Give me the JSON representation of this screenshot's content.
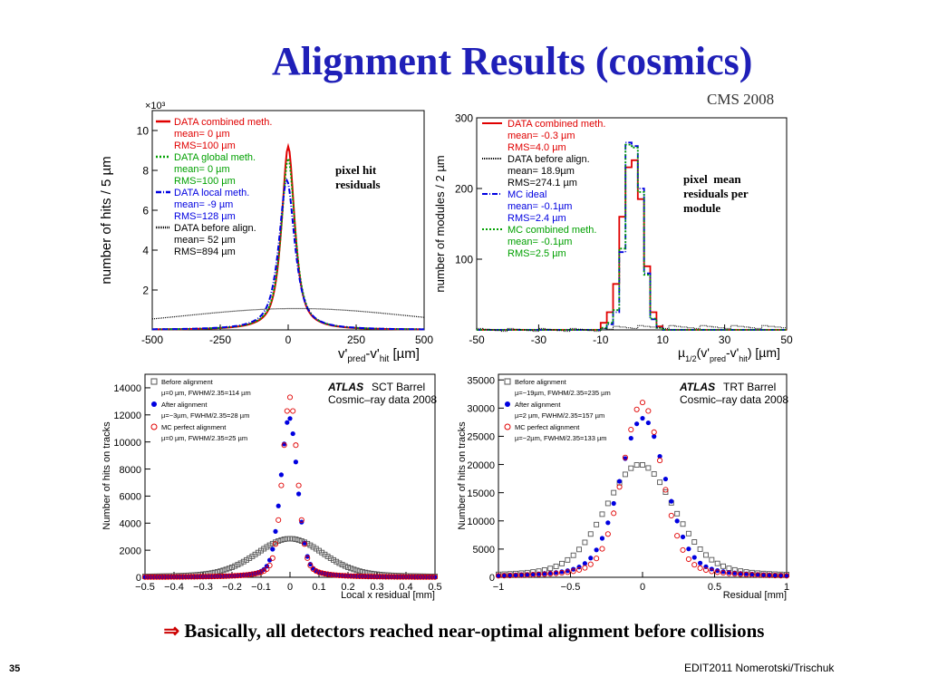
{
  "title": "Alignment Results (cosmics)",
  "cms_tag": "CMS 2008",
  "footer": {
    "arrow": "⇒",
    "text": "Basically, all detectors reached near-optimal alignment before collisions"
  },
  "page_number": "35",
  "credit": "EDIT2011 Nomerotski/Trischuk",
  "notes": {
    "pixel_hit": [
      "pixel hit",
      "residuals"
    ],
    "pixel_mean": [
      "pixel  mean",
      "residuals per",
      "module"
    ]
  },
  "colors": {
    "red": "#e00000",
    "green": "#00a000",
    "blue": "#0000e0",
    "black": "#000000",
    "title": "#1f1fb8"
  },
  "chart_data": [
    {
      "id": "cms-pixel-hit",
      "type": "line",
      "xlabel_main": "v'",
      "xlabel_sub1": "pred",
      "xlabel_mid": "-v'",
      "xlabel_sub2": "hit",
      "xlabel_unit": " [µm]",
      "ylabel": "number of hits / 5 µm",
      "yexp": "×10³",
      "xlim": [
        -500,
        500
      ],
      "ylim": [
        0,
        11
      ],
      "xticks": [
        -500,
        -250,
        0,
        250,
        500
      ],
      "yticks": [
        2,
        4,
        6,
        8,
        10
      ],
      "legend": [
        {
          "name": "DATA combined meth.",
          "color": "#e00000",
          "dash": "",
          "lines": [
            "mean= 0 µm",
            "RMS=100 µm"
          ]
        },
        {
          "name": "DATA global meth.",
          "color": "#00a000",
          "dash": "2,2",
          "lines": [
            "mean= 0 µm",
            "RMS=100 µm"
          ]
        },
        {
          "name": "DATA local meth.",
          "color": "#0000e0",
          "dash": "6,2,1,2",
          "lines": [
            "mean= -9 µm",
            "RMS=128 µm"
          ]
        },
        {
          "name": "DATA before align.",
          "color": "#000000",
          "dash": "1,1",
          "lines": [
            "mean= 52 µm",
            "RMS=894 µm"
          ]
        }
      ],
      "series": [
        {
          "name": "DATA combined meth.",
          "shape": "peak",
          "peak": 9.2,
          "mean": 0,
          "width": 28
        },
        {
          "name": "DATA global meth.",
          "shape": "peak",
          "peak": 8.6,
          "mean": 0,
          "width": 30
        },
        {
          "name": "DATA local meth.",
          "shape": "peak",
          "peak": 7.5,
          "mean": -5,
          "width": 34
        },
        {
          "name": "DATA before align.",
          "shape": "broad",
          "peak": 0.95,
          "mean": 30,
          "width": 420
        }
      ]
    },
    {
      "id": "cms-pixel-mean",
      "type": "histogram",
      "xlabel_main": "µ",
      "xlabel_sub1": "1/2",
      "xlabel_mid": "(v'",
      "xlabel_sub2": "pred",
      "xlabel_tail": "-v'",
      "xlabel_sub3": "hit",
      "xlabel_unit": ") [µm]",
      "ylabel": "number of modules / 2 µm",
      "xlim": [
        -50,
        50
      ],
      "ylim": [
        0,
        300
      ],
      "xticks": [
        -50,
        -30,
        -10,
        10,
        30,
        50
      ],
      "yticks": [
        100,
        200,
        300
      ],
      "legend": [
        {
          "name": "DATA combined meth.",
          "color": "#e00000",
          "dash": "",
          "lines": [
            "mean= -0.3 µm",
            "RMS=4.0 µm"
          ]
        },
        {
          "name": "DATA before align.",
          "color": "#000000",
          "dash": "1,1",
          "lines": [
            "mean= 18.9µm",
            "RMS=274.1 µm"
          ]
        },
        {
          "name": "MC ideal",
          "color": "#0000e0",
          "dash": "6,2,1,2",
          "lines": [
            "mean= -0.1µm",
            "RMS=2.4 µm"
          ]
        },
        {
          "name": "MC combined meth.",
          "color": "#00a000",
          "dash": "2,2",
          "lines": [
            "mean= -0.1µm",
            "RMS=2.5 µm"
          ]
        }
      ],
      "bin_edges": [
        -12,
        -10,
        -8,
        -6,
        -4,
        -2,
        0,
        2,
        4,
        6,
        8,
        10,
        12
      ],
      "series": [
        {
          "name": "DATA combined meth.",
          "values": [
            0,
            10,
            25,
            65,
            160,
            230,
            240,
            185,
            90,
            25,
            5,
            0
          ]
        },
        {
          "name": "MC ideal",
          "values": [
            0,
            2,
            8,
            25,
            110,
            265,
            260,
            200,
            80,
            15,
            3,
            0
          ]
        },
        {
          "name": "MC combined meth.",
          "values": [
            0,
            3,
            10,
            28,
            115,
            262,
            258,
            195,
            78,
            16,
            3,
            0
          ]
        },
        {
          "name": "DATA before align.",
          "values": [
            2,
            4,
            3,
            5,
            4,
            3,
            5,
            3,
            4,
            2,
            3,
            2
          ]
        }
      ]
    },
    {
      "id": "atlas-sct",
      "type": "scatter",
      "xlabel": "Local x residual [mm]",
      "ylabel": "Number of hits on tracks",
      "atlas_label": "ATLAS",
      "subtitle1": "SCT Barrel",
      "subtitle2": "Cosmic–ray data 2008",
      "xlim": [
        -0.5,
        0.5
      ],
      "ylim": [
        0,
        15000
      ],
      "xticks": [
        -0.5,
        -0.4,
        -0.3,
        -0.2,
        -0.1,
        0,
        0.1,
        0.2,
        0.3,
        0.4,
        0.5
      ],
      "xticklabels": [
        "−0.5",
        "−0.4",
        "−0.3",
        "−0.2",
        "−0.1",
        "0",
        "0.1",
        "0.2",
        "0.3",
        "0.4",
        "0.5"
      ],
      "yticks": [
        0,
        2000,
        4000,
        6000,
        8000,
        10000,
        12000,
        14000
      ],
      "legend": [
        {
          "name": "Before alignment",
          "marker": "square",
          "color": "#555555",
          "line": "µ=0 µm, FWHM/2.35=114 µm"
        },
        {
          "name": "After alignment",
          "marker": "dot",
          "color": "#0000e0",
          "line": "µ=−3µm, FWHM/2.35=28 µm"
        },
        {
          "name": "MC perfect alignment",
          "marker": "circle",
          "color": "#e00000",
          "line": "µ=0 µm, FWHM/2.35=25 µm"
        }
      ],
      "series": [
        {
          "name": "Before alignment",
          "peak": 2850,
          "mean": 0.0,
          "sigma": 0.114,
          "step": 0.01
        },
        {
          "name": "After alignment",
          "peak": 11800,
          "mean": -0.003,
          "sigma": 0.028,
          "step": 0.01
        },
        {
          "name": "MC perfect alignment",
          "peak": 13300,
          "mean": 0.0,
          "sigma": 0.025,
          "step": 0.01
        }
      ]
    },
    {
      "id": "atlas-trt",
      "type": "scatter",
      "xlabel": "Residual [mm]",
      "ylabel": "Number of hits on tracks",
      "atlas_label": "ATLAS",
      "subtitle1": "TRT Barrel",
      "subtitle2": "Cosmic–ray data 2008",
      "xlim": [
        -1,
        1
      ],
      "ylim": [
        0,
        36000
      ],
      "xticks": [
        -1,
        -0.5,
        0,
        0.5,
        1
      ],
      "xticklabels": [
        "−1",
        "−0.5",
        "0",
        "0.5",
        "1"
      ],
      "yticks": [
        0,
        5000,
        10000,
        15000,
        20000,
        25000,
        30000,
        35000
      ],
      "legend": [
        {
          "name": "Before alignment",
          "marker": "square",
          "color": "#555555",
          "line": "µ=−19µm, FWHM/2.35=235 µm"
        },
        {
          "name": "After alignment",
          "marker": "dot",
          "color": "#0000e0",
          "line": "µ=2 µm, FWHM/2.35=157 µm"
        },
        {
          "name": "MC perfect alignment",
          "marker": "circle",
          "color": "#e00000",
          "line": "µ=−2µm, FWHM/2.35=133 µm"
        }
      ],
      "series": [
        {
          "name": "Before alignment",
          "peak": 20000,
          "mean": -0.019,
          "sigma": 0.235,
          "step": 0.04
        },
        {
          "name": "After alignment",
          "peak": 28200,
          "mean": 0.002,
          "sigma": 0.157,
          "step": 0.04
        },
        {
          "name": "MC perfect alignment",
          "peak": 31000,
          "mean": -0.002,
          "sigma": 0.133,
          "step": 0.04
        }
      ]
    }
  ]
}
